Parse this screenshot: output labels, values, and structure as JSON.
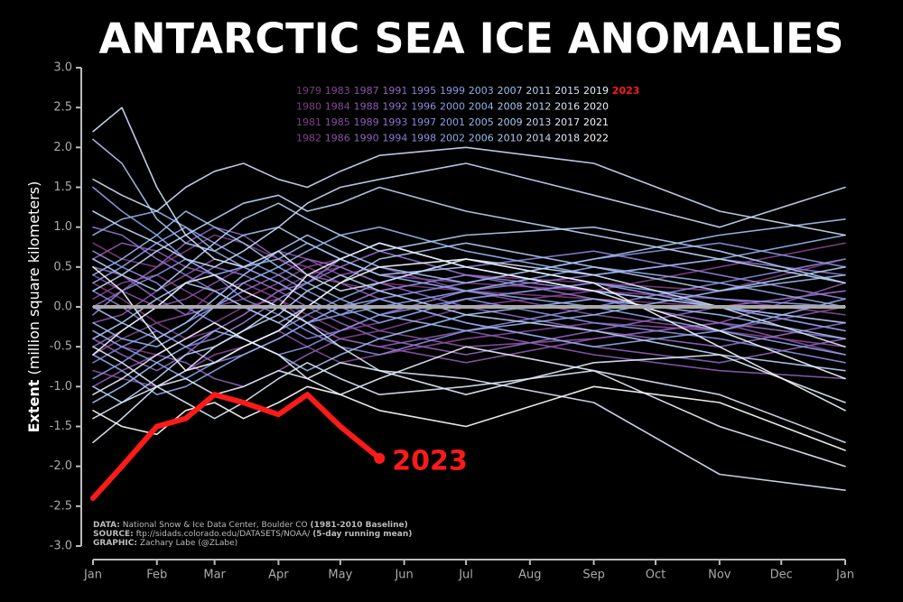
{
  "chart_data": {
    "type": "line",
    "title": "ANTARCTIC SEA ICE ANOMALIES",
    "ylabel_bold": "Extent",
    "ylabel": "(million square kilometers)",
    "x": [
      1,
      15,
      32,
      46,
      60,
      74,
      91,
      105,
      121,
      140,
      182,
      244,
      305,
      366
    ],
    "xlim": [
      1,
      366
    ],
    "xticks": [
      {
        "value": 1,
        "label": "Jan"
      },
      {
        "value": 32,
        "label": "Feb"
      },
      {
        "value": 60,
        "label": "Mar"
      },
      {
        "value": 91,
        "label": "Apr"
      },
      {
        "value": 121,
        "label": "May"
      },
      {
        "value": 152,
        "label": "Jun"
      },
      {
        "value": 182,
        "label": "Jul"
      },
      {
        "value": 213,
        "label": "Aug"
      },
      {
        "value": 244,
        "label": "Sep"
      },
      {
        "value": 274,
        "label": "Oct"
      },
      {
        "value": 305,
        "label": "Nov"
      },
      {
        "value": 335,
        "label": "Dec"
      },
      {
        "value": 366,
        "label": "Jan"
      }
    ],
    "ylim": [
      -3,
      3
    ],
    "yticks": [
      {
        "value": 3,
        "label": "3.0"
      },
      2.5,
      {
        "value": 2,
        "label": "2.0"
      },
      1.5,
      {
        "value": 1,
        "label": "1.0"
      },
      0.5,
      {
        "value": 0,
        "label": "0.0"
      },
      -0.5,
      {
        "value": -1,
        "label": "-1.0"
      },
      -1.5,
      {
        "value": -2,
        "label": "-2.0"
      },
      -2.5,
      {
        "value": -3,
        "label": "-3.0"
      }
    ],
    "zero_line": true,
    "series": [
      {
        "name": "1979",
        "color": "#7a3b7a",
        "values": [
          0.3,
          0.1,
          -0.2,
          -0.4,
          -0.3,
          -0.1,
          0.2,
          0.4,
          0.5,
          0.3,
          0.2,
          0.1,
          0.0,
          0.2
        ]
      },
      {
        "name": "1980",
        "color": "#7d3e80",
        "values": [
          0.8,
          0.6,
          0.5,
          0.7,
          0.9,
          0.8,
          0.6,
          0.5,
          0.3,
          0.2,
          0.4,
          0.3,
          0.2,
          0.6
        ]
      },
      {
        "name": "1981",
        "color": "#803f86",
        "values": [
          -0.3,
          -0.5,
          -0.6,
          -0.4,
          -0.2,
          0.0,
          0.1,
          -0.1,
          -0.3,
          -0.2,
          0.1,
          0.3,
          0.0,
          -0.2
        ]
      },
      {
        "name": "1982",
        "color": "#82428c",
        "values": [
          0.1,
          0.3,
          0.4,
          0.2,
          0.0,
          0.1,
          0.3,
          0.5,
          0.6,
          0.4,
          0.3,
          0.2,
          0.5,
          0.8
        ]
      },
      {
        "name": "1983",
        "color": "#844692",
        "values": [
          -0.6,
          -0.4,
          -0.2,
          -0.1,
          0.2,
          0.3,
          0.1,
          -0.2,
          -0.4,
          -0.3,
          0.0,
          0.2,
          0.1,
          -0.1
        ]
      },
      {
        "name": "1984",
        "color": "#864a98",
        "values": [
          -0.8,
          -0.9,
          -1.0,
          -0.8,
          -0.6,
          -0.5,
          -0.3,
          -0.5,
          -0.7,
          -0.6,
          -0.4,
          -0.2,
          -0.3,
          -0.5
        ]
      },
      {
        "name": "1985",
        "color": "#884e9e",
        "values": [
          0.4,
          0.2,
          0.0,
          0.1,
          0.3,
          0.5,
          0.7,
          0.6,
          0.4,
          0.5,
          0.2,
          -0.1,
          -0.3,
          0.0
        ]
      },
      {
        "name": "1986",
        "color": "#8a52a4",
        "values": [
          -0.2,
          -0.1,
          0.2,
          0.4,
          0.6,
          0.5,
          0.3,
          0.1,
          -0.1,
          -0.3,
          -0.5,
          -0.4,
          -0.2,
          -0.6
        ]
      },
      {
        "name": "1987",
        "color": "#8c56aa",
        "values": [
          0.6,
          0.8,
          0.7,
          0.5,
          0.4,
          0.2,
          0.0,
          -0.2,
          -0.4,
          -0.5,
          -0.7,
          -0.4,
          -0.2,
          0.3
        ]
      },
      {
        "name": "1988",
        "color": "#8d5bb0",
        "values": [
          -1.0,
          -0.8,
          -0.6,
          -0.7,
          -0.9,
          -1.0,
          -0.8,
          -0.6,
          -0.4,
          -0.5,
          -0.3,
          -0.6,
          -0.8,
          -0.9
        ]
      },
      {
        "name": "1989",
        "color": "#8e60b6",
        "values": [
          0.0,
          0.2,
          0.5,
          0.8,
          1.0,
          0.9,
          0.6,
          0.4,
          0.3,
          0.1,
          -0.2,
          -0.5,
          -0.7,
          -0.4
        ]
      },
      {
        "name": "1990",
        "color": "#8f65bc",
        "values": [
          -0.4,
          -0.6,
          -0.8,
          -0.6,
          -0.3,
          -0.1,
          0.2,
          0.0,
          -0.2,
          -0.4,
          -0.6,
          -0.3,
          0.0,
          0.2
        ]
      },
      {
        "name": "1991",
        "color": "#906ac1",
        "values": [
          0.5,
          0.4,
          0.1,
          -0.1,
          0.0,
          0.2,
          0.4,
          0.6,
          0.5,
          0.3,
          0.0,
          -0.3,
          -0.5,
          -0.2
        ]
      },
      {
        "name": "1992",
        "color": "#9070c6",
        "values": [
          -0.5,
          -0.3,
          0.0,
          0.3,
          0.5,
          0.4,
          0.2,
          0.3,
          0.5,
          0.7,
          0.4,
          0.1,
          -0.2,
          -0.4
        ]
      },
      {
        "name": "1993",
        "color": "#8f76cb",
        "values": [
          1.0,
          0.9,
          0.6,
          0.4,
          0.2,
          0.0,
          -0.2,
          -0.4,
          -0.3,
          -0.1,
          0.2,
          0.4,
          0.6,
          0.4
        ]
      },
      {
        "name": "1994",
        "color": "#8e7cd0",
        "values": [
          -0.7,
          -0.5,
          -0.3,
          -0.5,
          -0.7,
          -0.6,
          -0.4,
          -0.2,
          0.0,
          0.2,
          0.4,
          0.2,
          0.0,
          -0.3
        ]
      },
      {
        "name": "1995",
        "color": "#8d82d4",
        "values": [
          0.2,
          0.0,
          -0.3,
          -0.5,
          -0.4,
          -0.2,
          0.1,
          0.3,
          0.6,
          0.8,
          0.5,
          0.7,
          0.4,
          0.1
        ]
      },
      {
        "name": "1996",
        "color": "#8b88d8",
        "values": [
          -0.1,
          0.2,
          0.4,
          0.6,
          0.4,
          0.1,
          -0.1,
          -0.3,
          -0.5,
          -0.6,
          -0.3,
          0.0,
          0.3,
          0.6
        ]
      },
      {
        "name": "1997",
        "color": "#8a8edb",
        "values": [
          0.7,
          0.5,
          0.3,
          0.0,
          -0.2,
          -0.4,
          -0.6,
          -0.5,
          -0.3,
          -0.1,
          0.1,
          -0.2,
          -0.4,
          -0.7
        ]
      },
      {
        "name": "1998",
        "color": "#8994de",
        "values": [
          -0.9,
          -0.7,
          -0.4,
          -0.2,
          0.0,
          0.2,
          0.0,
          -0.2,
          -0.1,
          0.1,
          0.3,
          0.6,
          0.8,
          0.5
        ]
      },
      {
        "name": "1999",
        "color": "#899ae1",
        "values": [
          0.3,
          0.5,
          0.8,
          1.0,
          0.8,
          0.6,
          0.4,
          0.2,
          0.0,
          -0.2,
          0.1,
          0.3,
          0.0,
          -0.3
        ]
      },
      {
        "name": "2000",
        "color": "#89a0e3",
        "values": [
          -0.3,
          -0.5,
          -0.7,
          -0.9,
          -0.7,
          -0.5,
          -0.3,
          -0.1,
          0.1,
          0.3,
          0.6,
          0.3,
          0.1,
          0.0
        ]
      },
      {
        "name": "2001",
        "color": "#8aa5e5",
        "values": [
          1.5,
          1.2,
          0.9,
          0.6,
          0.4,
          0.5,
          0.3,
          0.1,
          -0.1,
          0.0,
          0.2,
          0.0,
          -0.3,
          -0.6
        ]
      },
      {
        "name": "2002",
        "color": "#8caae7",
        "values": [
          -0.6,
          -0.8,
          -1.1,
          -1.0,
          -0.8,
          -0.6,
          -0.4,
          -0.2,
          0.0,
          0.1,
          -0.2,
          -0.5,
          -0.3,
          0.1
        ]
      },
      {
        "name": "2003",
        "color": "#8fafe9",
        "values": [
          0.9,
          1.1,
          1.2,
          1.0,
          0.7,
          0.5,
          0.6,
          0.8,
          0.6,
          0.4,
          0.2,
          0.5,
          0.3,
          0.0
        ]
      },
      {
        "name": "2004",
        "color": "#93b4ea",
        "values": [
          -0.2,
          -0.4,
          -0.5,
          -0.3,
          0.0,
          0.3,
          0.5,
          0.7,
          0.9,
          1.0,
          0.7,
          0.4,
          0.6,
          0.9
        ]
      },
      {
        "name": "2005",
        "color": "#97b8ec",
        "values": [
          0.4,
          0.6,
          0.9,
          1.2,
          1.0,
          0.8,
          0.5,
          0.3,
          0.1,
          -0.1,
          -0.3,
          -0.1,
          0.2,
          0.4
        ]
      },
      {
        "name": "2006",
        "color": "#9cbdee",
        "values": [
          -1.2,
          -1.0,
          -0.7,
          -0.5,
          -0.3,
          -0.4,
          -0.6,
          -0.8,
          -0.6,
          -0.4,
          -0.1,
          0.1,
          -0.1,
          -0.4
        ]
      },
      {
        "name": "2007",
        "color": "#a1c1ef",
        "values": [
          0.0,
          -0.2,
          -0.4,
          -0.2,
          0.1,
          0.4,
          0.7,
          0.9,
          0.7,
          0.5,
          0.3,
          0.6,
          0.9,
          1.1
        ]
      },
      {
        "name": "2008",
        "color": "#a7c5f0",
        "values": [
          2.1,
          1.8,
          1.1,
          0.8,
          0.7,
          0.9,
          1.0,
          0.8,
          0.6,
          0.4,
          0.5,
          0.2,
          0.0,
          -0.2
        ]
      },
      {
        "name": "2009",
        "color": "#adc9f2",
        "values": [
          -0.4,
          -0.2,
          0.1,
          0.3,
          0.2,
          0.0,
          -0.2,
          0.0,
          0.3,
          0.6,
          0.8,
          0.5,
          0.2,
          0.5
        ]
      },
      {
        "name": "2010",
        "color": "#b3cdf3",
        "values": [
          0.6,
          0.4,
          0.2,
          0.5,
          0.8,
          1.1,
          1.3,
          1.1,
          0.9,
          0.7,
          0.9,
          1.0,
          0.7,
          0.3
        ]
      },
      {
        "name": "2011",
        "color": "#b9d1f4",
        "values": [
          -1.0,
          -1.2,
          -0.9,
          -0.6,
          -0.5,
          -0.3,
          -0.1,
          0.2,
          0.4,
          0.2,
          -0.1,
          -0.3,
          -0.6,
          -0.8
        ]
      },
      {
        "name": "2012",
        "color": "#bfd5f5",
        "values": [
          0.2,
          0.4,
          0.7,
          0.9,
          1.1,
          1.3,
          1.4,
          1.2,
          1.3,
          1.5,
          1.2,
          0.9,
          0.6,
          0.3
        ]
      },
      {
        "name": "2013",
        "color": "#c5d9f6",
        "values": [
          1.2,
          1.0,
          0.8,
          0.6,
          0.5,
          0.7,
          1.0,
          1.3,
          1.5,
          1.6,
          1.8,
          1.4,
          1.0,
          1.5
        ]
      },
      {
        "name": "2014",
        "color": "#cbddf7",
        "values": [
          1.6,
          1.4,
          1.2,
          1.5,
          1.7,
          1.8,
          1.6,
          1.5,
          1.7,
          1.9,
          2.0,
          1.8,
          1.2,
          0.9
        ]
      },
      {
        "name": "2015",
        "color": "#d1e1f8",
        "values": [
          2.2,
          2.5,
          1.5,
          0.9,
          0.6,
          0.5,
          0.7,
          0.4,
          0.2,
          0.3,
          0.6,
          0.4,
          0.0,
          -0.5
        ]
      },
      {
        "name": "2016",
        "color": "#d7e5f9",
        "values": [
          -0.5,
          -0.7,
          -1.0,
          -0.8,
          -0.5,
          -0.3,
          0.0,
          -0.2,
          -0.5,
          -0.8,
          -0.9,
          -1.2,
          -2.1,
          -2.3
        ]
      },
      {
        "name": "2017",
        "color": "#dde9fa",
        "values": [
          -1.4,
          -1.2,
          -1.0,
          -1.2,
          -1.4,
          -1.2,
          -0.9,
          -0.7,
          -0.9,
          -1.1,
          -1.0,
          -0.8,
          -1.1,
          -1.7
        ]
      },
      {
        "name": "2018",
        "color": "#e3edfb",
        "values": [
          -1.7,
          -1.4,
          -1.0,
          -0.9,
          -1.1,
          -1.0,
          -0.8,
          -0.9,
          -0.7,
          -0.8,
          -1.1,
          -0.7,
          -0.6,
          -1.2
        ]
      },
      {
        "name": "2019",
        "color": "#e9f1fc",
        "values": [
          -1.1,
          -0.9,
          -0.6,
          -0.4,
          -0.2,
          -0.4,
          -0.6,
          -0.9,
          -1.1,
          -0.9,
          -0.5,
          -0.8,
          -1.5,
          -2.0
        ]
      },
      {
        "name": "2020",
        "color": "#eff5fd",
        "values": [
          -0.6,
          -0.3,
          0.0,
          0.3,
          0.4,
          0.2,
          0.0,
          0.4,
          0.6,
          0.8,
          0.5,
          0.2,
          -0.3,
          -0.9
        ]
      },
      {
        "name": "2021",
        "color": "#f5f9fe",
        "values": [
          0.5,
          0.2,
          -0.4,
          -0.8,
          -0.7,
          -0.5,
          -0.3,
          0.0,
          0.3,
          0.5,
          0.6,
          0.3,
          -0.5,
          -1.3
        ]
      },
      {
        "name": "2022",
        "color": "#ffffff",
        "values": [
          -1.3,
          -1.5,
          -1.6,
          -1.3,
          -1.2,
          -1.4,
          -1.2,
          -1.0,
          -1.1,
          -1.3,
          -1.5,
          -1.0,
          -1.2,
          -1.8
        ]
      },
      {
        "name": "2023",
        "color": "#ff1a1a",
        "highlight": true,
        "values": [
          -2.4,
          -2.0,
          -1.5,
          -1.4,
          -1.1,
          -1.2,
          -1.35,
          -1.1,
          -1.5,
          -1.9,
          null,
          null,
          null,
          null
        ]
      }
    ],
    "notes": [
      {
        "label": "DATA:",
        "text": "National Snow & Ice Data Center, Boulder CO",
        "extra": "(1981-2010 Baseline)"
      },
      {
        "label": "SOURCE:",
        "text": "ftp://sidads.colorado.edu/DATASETS/NOAA/",
        "extra": "(5-day running mean)"
      },
      {
        "label": "GRAPHIC:",
        "text": "Zachary Labe (@ZLabe)"
      }
    ]
  }
}
